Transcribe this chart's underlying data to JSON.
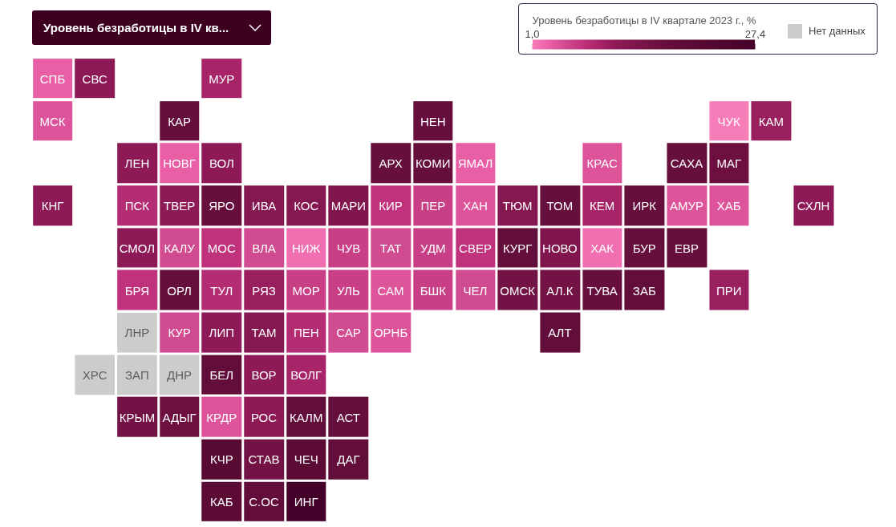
{
  "chart_data": {
    "type": "heatmap",
    "title": "Уровень безработицы в IV кв...",
    "clabel": "Уровень безработицы в IV квартале 2023 г., %",
    "clim": [
      1.0,
      27.4
    ],
    "cticks": [
      {
        "value": 1.0,
        "label": "1,0"
      },
      {
        "value": 27.4,
        "label": "27,4"
      }
    ],
    "annotations": [
      "Нет данных"
    ],
    "tick_labels": false,
    "categories": [
      null,
      null,
      null,
      null,
      null,
      null,
      null,
      null,
      null,
      null,
      null,
      null,
      null,
      null,
      null,
      null,
      null,
      null,
      null
    ],
    "y_categories": [
      null,
      null,
      null,
      null,
      null,
      null,
      null,
      null,
      null,
      null,
      null
    ],
    "cells": [
      [
        3,
        11,
        null,
        null,
        9,
        null,
        null,
        null,
        null,
        null,
        null,
        null,
        null,
        null,
        null,
        null,
        null,
        null,
        null
      ],
      [
        4,
        null,
        null,
        17,
        null,
        null,
        null,
        null,
        null,
        17,
        null,
        null,
        null,
        null,
        null,
        null,
        1,
        10,
        null
      ],
      [
        null,
        null,
        11,
        3,
        11,
        null,
        null,
        null,
        17,
        17,
        3,
        null,
        null,
        4,
        null,
        17,
        16,
        null,
        null
      ],
      [
        11,
        null,
        8,
        11,
        17,
        12,
        12,
        13,
        7,
        6,
        4,
        12,
        17,
        9,
        17,
        4,
        4,
        null,
        11
      ],
      [
        null,
        null,
        11,
        5,
        7,
        5,
        2,
        6,
        5,
        6,
        7,
        18,
        13,
        2,
        17,
        17,
        null,
        null,
        null
      ],
      [
        null,
        null,
        7,
        17,
        8,
        10,
        6,
        6,
        4,
        6,
        5,
        15,
        15,
        17,
        18,
        null,
        10,
        null,
        null
      ],
      [
        null,
        null,
        null,
        5,
        11,
        12,
        8,
        5,
        4,
        null,
        null,
        null,
        18,
        null,
        null,
        null,
        null,
        null,
        null
      ],
      [
        null,
        null,
        null,
        null,
        18,
        11,
        9,
        null,
        null,
        null,
        null,
        null,
        null,
        null,
        null,
        null,
        null,
        null,
        null
      ],
      [
        null,
        null,
        15,
        16,
        4,
        11,
        18,
        17,
        null,
        null,
        null,
        null,
        null,
        null,
        null,
        null,
        null,
        null,
        null
      ],
      [
        null,
        null,
        null,
        null,
        21,
        15,
        20,
        18,
        null,
        null,
        null,
        null,
        null,
        null,
        null,
        null,
        null,
        null,
        null
      ],
      [
        null,
        null,
        null,
        null,
        20,
        18,
        27.4,
        null,
        null,
        null,
        null,
        null,
        null,
        null,
        null,
        null,
        null,
        null,
        null
      ]
    ],
    "cell_labels": [
      [
        "СПБ",
        "СВС",
        null,
        null,
        "МУР",
        null,
        null,
        null,
        null,
        null,
        null,
        null,
        null,
        null,
        null,
        null,
        null,
        null,
        null
      ],
      [
        "МСК",
        null,
        null,
        "КАР",
        null,
        null,
        null,
        null,
        null,
        "НЕН",
        null,
        null,
        null,
        null,
        null,
        null,
        "ЧУК",
        "КАМ",
        null
      ],
      [
        null,
        null,
        "ЛЕН",
        "НОВГ",
        "ВОЛ",
        null,
        null,
        null,
        "АРХ",
        "КОМИ",
        "ЯМАЛ",
        null,
        null,
        "КРАС",
        null,
        "САХА",
        "МАГ",
        null,
        null
      ],
      [
        "КНГ",
        null,
        "ПСК",
        "ТВЕР",
        "ЯРО",
        "ИВА",
        "КОС",
        "МАРИ",
        "КИР",
        "ПЕР",
        "ХАН",
        "ТЮМ",
        "ТОМ",
        "КЕМ",
        "ИРК",
        "АМУР",
        "ХАБ",
        null,
        "СХЛН"
      ],
      [
        null,
        null,
        "СМОЛ",
        "КАЛУ",
        "МОС",
        "ВЛА",
        "НИЖ",
        "ЧУВ",
        "ТАТ",
        "УДМ",
        "СВЕР",
        "КУРГ",
        "НОВО",
        "ХАК",
        "БУР",
        "ЕВР",
        null,
        null,
        null
      ],
      [
        null,
        null,
        "БРЯ",
        "ОРЛ",
        "ТУЛ",
        "РЯЗ",
        "МОР",
        "УЛЬ",
        "САМ",
        "БШК",
        "ЧЕЛ",
        "ОМСК",
        "АЛ.К",
        "ТУВА",
        "ЗАБ",
        null,
        "ПРИ",
        null,
        null
      ],
      [
        null,
        null,
        "ЛНР",
        "КУР",
        "ЛИП",
        "ТАМ",
        "ПЕН",
        "САР",
        "ОРНБ",
        null,
        null,
        null,
        "АЛТ",
        null,
        null,
        null,
        null,
        null,
        null
      ],
      [
        null,
        "ХРС",
        "ЗАП",
        "ДНР",
        "БЕЛ",
        "ВОР",
        "ВОЛГ",
        null,
        null,
        null,
        null,
        null,
        null,
        null,
        null,
        null,
        null,
        null,
        null
      ],
      [
        null,
        null,
        "КРЫМ",
        "АДЫГ",
        "КРДР",
        "РОС",
        "КАЛМ",
        "АСТ",
        null,
        null,
        null,
        null,
        null,
        null,
        null,
        null,
        null,
        null,
        null
      ],
      [
        null,
        null,
        null,
        null,
        "КЧР",
        "СТАВ",
        "ЧЕЧ",
        "ДАГ",
        null,
        null,
        null,
        null,
        null,
        null,
        null,
        null,
        null,
        null,
        null
      ],
      [
        null,
        null,
        null,
        null,
        "КАБ",
        "С.ОС",
        "ИНГ",
        null,
        null,
        null,
        null,
        null,
        null,
        null,
        null,
        null,
        null,
        null,
        null
      ]
    ]
  }
}
